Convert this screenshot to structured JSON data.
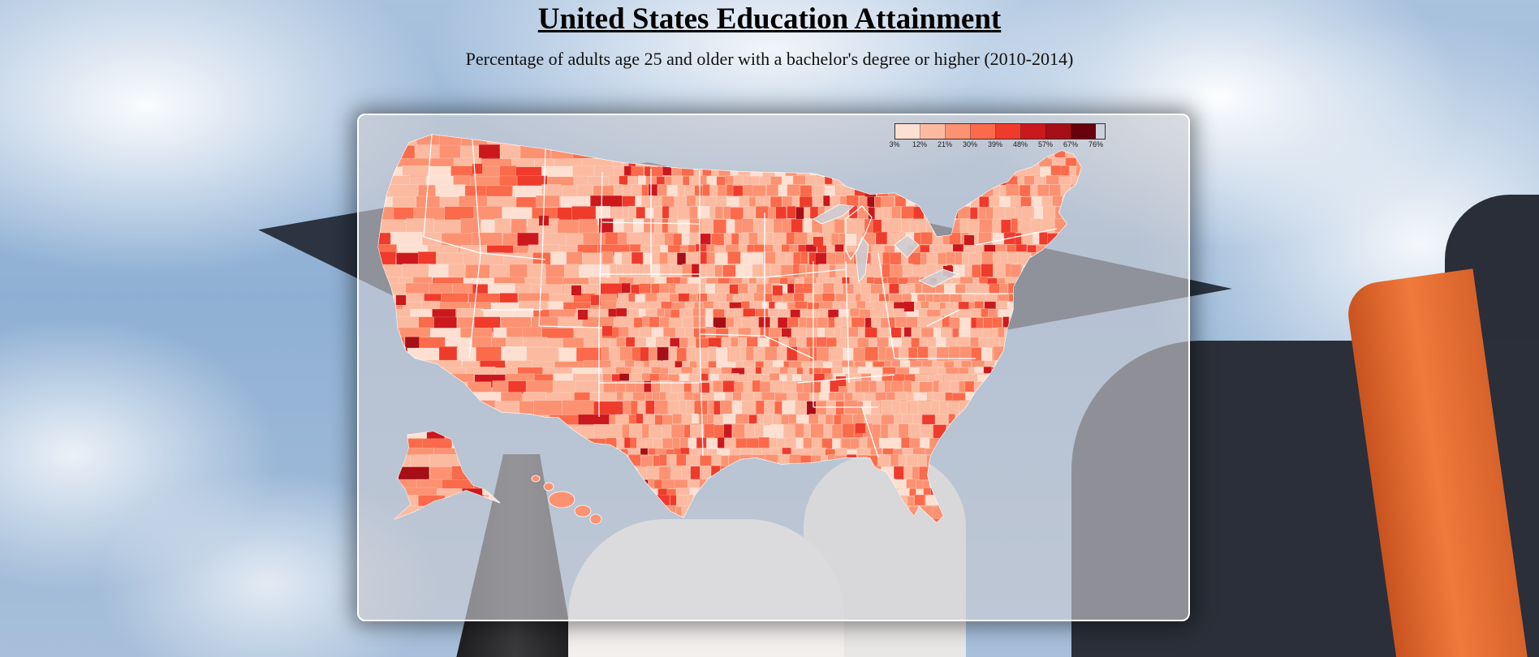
{
  "header": {
    "title": "United States Education Attainment",
    "subtitle": "Percentage of adults age 25 and older with a bachelor's degree or higher (2010-2014)"
  },
  "legend": {
    "colors": [
      "#fee0d2",
      "#fcbba1",
      "#fc9272",
      "#fb6a4a",
      "#ef3b2c",
      "#cb181d",
      "#a50f15",
      "#67000d"
    ],
    "ticks": [
      "3%",
      "12%",
      "21%",
      "30%",
      "39%",
      "48%",
      "57%",
      "67%",
      "76%"
    ]
  },
  "map": {
    "county_fill_default": "#f7a688",
    "boundary_color": "#ffffff"
  }
}
